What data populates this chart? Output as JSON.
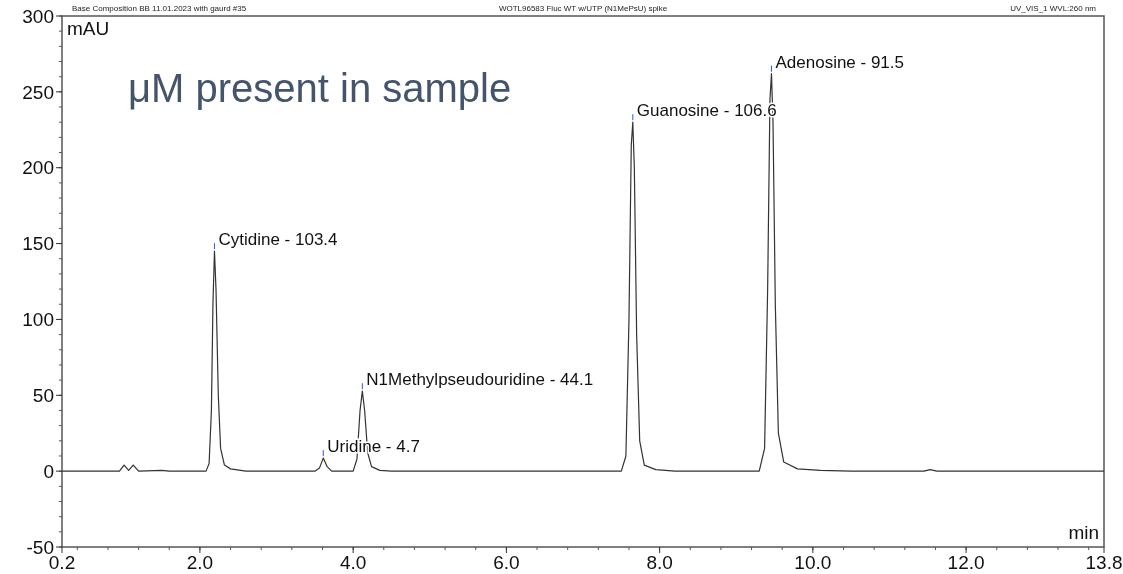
{
  "chart_data": {
    "type": "line",
    "title": "μM present in sample",
    "subtitle": "WOTL96583 Fluc WT w/UTP (N1MePsU) spike",
    "xlabel": "min",
    "ylabel": "mAU",
    "annotations": [
      "Base Composition BB 11.01.2023 with gaurd #35",
      "UV_VIS_1 WVL:260 nm",
      {
        "text": "Cytidine - 103.4",
        "x": 2.19,
        "y": 145
      },
      {
        "text": "Uridine - 4.7",
        "x": 3.61,
        "y": 8.6
      },
      {
        "text": "N1Methylpseudouridine - 44.1",
        "x": 4.12,
        "y": 52.7
      },
      {
        "text": "Guanosine - 106.6",
        "x": 7.65,
        "y": 230
      },
      {
        "text": "Adenosine - 91.5",
        "x": 9.46,
        "y": 262
      }
    ],
    "series": [
      {
        "color": "#333333",
        "x": [
          0.2,
          0.95,
          1.01,
          1.07,
          1.13,
          1.2,
          1.5,
          1.6,
          2.08,
          2.12,
          2.15,
          2.17,
          2.19,
          2.21,
          2.24,
          2.27,
          2.32,
          2.4,
          2.6,
          3.5,
          3.56,
          3.61,
          3.66,
          3.72,
          4.0,
          4.05,
          4.09,
          4.12,
          4.15,
          4.19,
          4.24,
          4.35,
          4.5,
          7.5,
          7.56,
          7.6,
          7.63,
          7.65,
          7.67,
          7.7,
          7.74,
          7.8,
          7.95,
          8.2,
          9.3,
          9.37,
          9.41,
          9.44,
          9.46,
          9.48,
          9.51,
          9.55,
          9.62,
          9.8,
          10.1,
          10.5,
          11.45,
          11.53,
          11.62,
          13.8
        ],
        "values": [
          0,
          0,
          4,
          0.5,
          4,
          0,
          0.5,
          0,
          0,
          5,
          40,
          110,
          145,
          120,
          50,
          15,
          4,
          1.5,
          0,
          0,
          2,
          8.6,
          3,
          0,
          0,
          8,
          40,
          52.7,
          40,
          12,
          3,
          0.5,
          0,
          0,
          10,
          100,
          215,
          230,
          200,
          90,
          20,
          4,
          1,
          0,
          0,
          15,
          120,
          245,
          262,
          230,
          110,
          25,
          6,
          1.5,
          0.5,
          0,
          0,
          1,
          0,
          0
        ]
      }
    ],
    "xlim": [
      0.2,
      13.8
    ],
    "xticks": [
      0.2,
      {
        "value": 2,
        "label": "2.0"
      },
      {
        "value": 4,
        "label": "4.0"
      },
      {
        "value": 6,
        "label": "6.0"
      },
      {
        "value": 8,
        "label": "8.0"
      },
      {
        "value": 10,
        "label": "10.0"
      },
      {
        "value": 12,
        "label": "12.0"
      },
      13.8
    ],
    "ylim": [
      -50,
      300
    ],
    "yticks": [
      -50,
      0,
      50,
      100,
      150,
      200,
      250,
      300
    ],
    "marker": "none",
    "line_style": "solid"
  }
}
